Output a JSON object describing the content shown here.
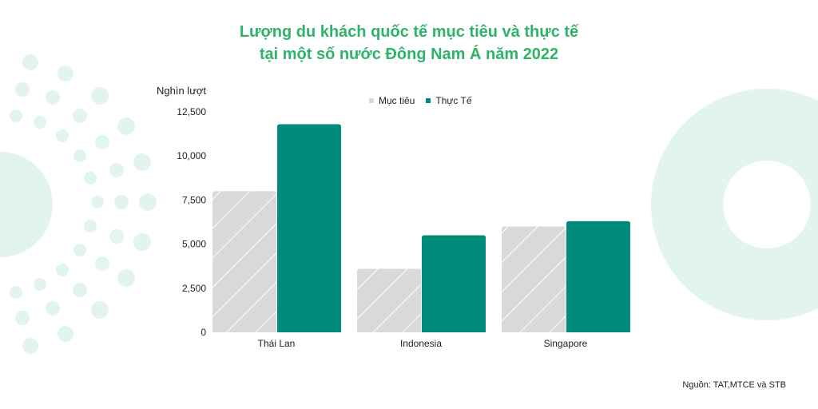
{
  "title_line1": "Lượng du khách quốc tế mục tiêu và thực tế",
  "title_line2": "tại một số nước Đông Nam Á năm 2022",
  "source": "Nguồn: TAT,MTCE và STB",
  "colors": {
    "accent": "#2fb36a",
    "target": "#d9d9d9",
    "actual": "#008b7a",
    "decor": "#e2f5ec"
  },
  "legend": [
    {
      "label": "Mục tiêu",
      "color": "#d9d9d9"
    },
    {
      "label": "Thực Tế",
      "color": "#008b7a"
    }
  ],
  "chart_data": {
    "type": "bar",
    "title": "Lượng du khách quốc tế mục tiêu và thực tế tại một số nước Đông Nam Á năm 2022",
    "ylabel": "Nghìn lượt",
    "xlabel": "",
    "categories": [
      "Thái Lan",
      "Indonesia",
      "Singapore"
    ],
    "series": [
      {
        "name": "Mục tiêu",
        "values": [
          8000,
          3600,
          6000
        ]
      },
      {
        "name": "Thực Tế",
        "values": [
          11800,
          5500,
          6300
        ]
      }
    ],
    "ylim": [
      0,
      12500
    ],
    "yticks": [
      0,
      2500,
      5000,
      7500,
      10000,
      12500
    ],
    "ytick_labels": [
      "0",
      "2,500",
      "5,000",
      "7,500",
      "10,000",
      "12,500"
    ],
    "grid": false,
    "legend_position": "top-center"
  }
}
